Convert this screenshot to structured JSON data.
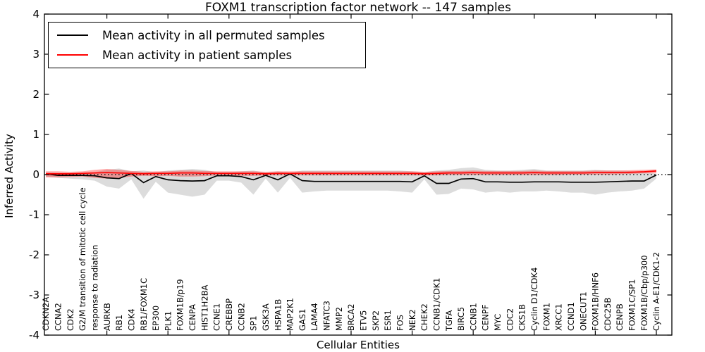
{
  "figure": {
    "title": "FOXM1 transcription factor network -- 147 samples"
  },
  "legend": {
    "entries": [
      {
        "label": "Mean activity in all permuted samples",
        "color": "#000000"
      },
      {
        "label": "Mean activity in patient samples",
        "color": "#ff0000"
      }
    ]
  },
  "chart_data": {
    "type": "line",
    "title": "FOXM1 transcription factor network -- 147 samples",
    "xlabel": "Cellular Entities",
    "ylabel": "Inferred Activity",
    "ylim": [
      -4,
      4
    ],
    "yticks": [
      4,
      3,
      2,
      1,
      0,
      -1,
      -2,
      -3,
      -4
    ],
    "grid": false,
    "legend_position": "upper left",
    "zero_reference_line": "dotted",
    "categories": [
      "CDKN2A",
      "CCNA2",
      "CDK2",
      "G2/M transition of mitotic cell cycle",
      "response to radiation",
      "AURKB",
      "RB1",
      "CDK4",
      "RB1/FOXM1C",
      "EP300",
      "PLK1",
      "FOXM1B/p19",
      "CENPA",
      "HIST1H2BA",
      "CCNE1",
      "CREBBP",
      "CCNB2",
      "SP1",
      "GSK3A",
      "HSPA1B",
      "MAP2K1",
      "GAS1",
      "LAMA4",
      "NFATC3",
      "MMP2",
      "BRCA2",
      "ETV5",
      "SKP2",
      "ESR1",
      "FOS",
      "NEK2",
      "CHEK2",
      "CCNB1/CDK1",
      "TGFA",
      "BIRC5",
      "CCNB1",
      "CENPF",
      "MYC",
      "CDC2",
      "CKS1B",
      "Cyclin D1/CDK4",
      "FOXM1",
      "XRCC1",
      "CCND1",
      "ONECUT1",
      "FOXM1B/HNF6",
      "CDC25B",
      "CENPB",
      "FOXM1C/SP1",
      "FOXM1B/Cbp/p300",
      "Cyclin A-E1/CDK1-2"
    ],
    "series": [
      {
        "name": "Mean activity in all permuted samples",
        "color": "#000000",
        "band_color": "#808080",
        "values": [
          0.02,
          -0.02,
          -0.02,
          -0.02,
          -0.03,
          -0.08,
          -0.1,
          0.03,
          -0.2,
          -0.05,
          -0.13,
          -0.15,
          -0.16,
          -0.15,
          -0.03,
          -0.03,
          -0.05,
          -0.13,
          -0.02,
          -0.13,
          0.02,
          -0.15,
          -0.17,
          -0.17,
          -0.17,
          -0.17,
          -0.17,
          -0.17,
          -0.17,
          -0.17,
          -0.18,
          -0.03,
          -0.22,
          -0.22,
          -0.11,
          -0.1,
          -0.18,
          -0.18,
          -0.19,
          -0.19,
          -0.18,
          -0.18,
          -0.18,
          -0.19,
          -0.19,
          -0.19,
          -0.18,
          -0.17,
          -0.16,
          -0.16,
          -0.01
        ],
        "band_low": [
          -0.05,
          -0.08,
          -0.1,
          -0.12,
          -0.15,
          -0.3,
          -0.35,
          -0.12,
          -0.6,
          -0.18,
          -0.45,
          -0.5,
          -0.55,
          -0.5,
          -0.15,
          -0.15,
          -0.2,
          -0.5,
          -0.1,
          -0.45,
          -0.08,
          -0.45,
          -0.42,
          -0.4,
          -0.4,
          -0.4,
          -0.4,
          -0.4,
          -0.4,
          -0.42,
          -0.45,
          -0.12,
          -0.5,
          -0.48,
          -0.35,
          -0.37,
          -0.45,
          -0.42,
          -0.45,
          -0.42,
          -0.42,
          -0.4,
          -0.42,
          -0.45,
          -0.45,
          -0.5,
          -0.45,
          -0.42,
          -0.4,
          -0.35,
          -0.1
        ],
        "band_high": [
          0.06,
          0.04,
          0.04,
          0.05,
          0.06,
          0.12,
          0.15,
          0.08,
          0.1,
          0.06,
          0.1,
          0.12,
          0.14,
          0.12,
          0.06,
          0.06,
          0.08,
          0.1,
          0.05,
          0.08,
          0.05,
          0.1,
          0.1,
          0.1,
          0.1,
          0.1,
          0.1,
          0.1,
          0.1,
          0.1,
          0.08,
          0.06,
          0.1,
          0.12,
          0.16,
          0.18,
          0.12,
          0.1,
          0.1,
          0.12,
          0.14,
          0.1,
          0.1,
          0.1,
          0.1,
          0.12,
          0.1,
          0.1,
          0.08,
          0.06,
          0.02
        ]
      },
      {
        "name": "Mean activity in patient samples",
        "color": "#ff0000",
        "band_color": "#ff0000",
        "values": [
          0.02,
          0.02,
          0.02,
          0.03,
          0.04,
          0.05,
          0.04,
          0.03,
          0.02,
          0.03,
          0.03,
          0.04,
          0.04,
          0.03,
          0.03,
          0.03,
          0.03,
          0.03,
          0.02,
          0.03,
          0.03,
          0.03,
          0.03,
          0.03,
          0.03,
          0.03,
          0.03,
          0.03,
          0.03,
          0.03,
          0.03,
          0.02,
          0.03,
          0.04,
          0.04,
          0.05,
          0.04,
          0.04,
          0.04,
          0.04,
          0.05,
          0.04,
          0.04,
          0.04,
          0.04,
          0.05,
          0.05,
          0.05,
          0.06,
          0.07,
          0.09
        ],
        "band_low": [
          -0.07,
          -0.07,
          -0.06,
          -0.05,
          -0.08,
          -0.1,
          -0.08,
          -0.05,
          -0.03,
          -0.04,
          -0.03,
          -0.05,
          -0.05,
          -0.04,
          -0.02,
          -0.02,
          -0.03,
          -0.03,
          -0.02,
          -0.02,
          -0.02,
          -0.02,
          -0.02,
          -0.02,
          -0.02,
          -0.02,
          -0.02,
          -0.02,
          -0.02,
          -0.02,
          -0.02,
          -0.02,
          -0.02,
          -0.01,
          -0.01,
          -0.01,
          -0.01,
          -0.01,
          -0.01,
          -0.01,
          -0.01,
          -0.01,
          -0.01,
          0.0,
          0.0,
          0.0,
          0.0,
          0.01,
          0.02,
          0.03,
          0.03
        ],
        "band_high": [
          0.08,
          0.08,
          0.07,
          0.08,
          0.12,
          0.14,
          0.12,
          0.09,
          0.07,
          0.08,
          0.08,
          0.1,
          0.1,
          0.09,
          0.08,
          0.08,
          0.08,
          0.08,
          0.07,
          0.08,
          0.08,
          0.08,
          0.08,
          0.08,
          0.08,
          0.08,
          0.08,
          0.08,
          0.08,
          0.08,
          0.08,
          0.07,
          0.08,
          0.09,
          0.09,
          0.1,
          0.09,
          0.09,
          0.09,
          0.09,
          0.1,
          0.09,
          0.09,
          0.09,
          0.09,
          0.1,
          0.1,
          0.1,
          0.11,
          0.12,
          0.13
        ]
      }
    ]
  }
}
